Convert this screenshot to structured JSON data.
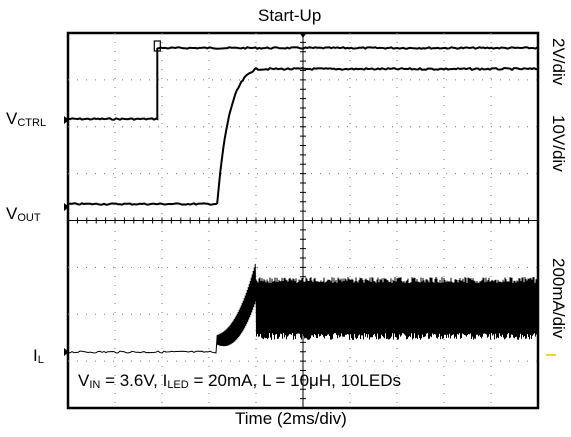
{
  "chart_data": {
    "type": "line",
    "title": "Start-Up",
    "xlabel": "Time (2ms/div)",
    "x_divisions": 10,
    "y_divisions": 8,
    "grid": true,
    "x_unit": "ms",
    "x_per_div": 2,
    "x_range": [
      0,
      20
    ],
    "trigger_time_ms": 8.0,
    "series": [
      {
        "name": "VCTRL",
        "scale": "2V/div",
        "description_points": [
          [
            0,
            0
          ],
          [
            3.8,
            0
          ],
          [
            3.8,
            3.6
          ],
          [
            20,
            3.6
          ]
        ],
        "unit": "V"
      },
      {
        "name": "VOUT",
        "scale": "10V/div",
        "description_points": [
          [
            0,
            0
          ],
          [
            6.3,
            0
          ],
          [
            6.5,
            12
          ],
          [
            7.0,
            18
          ],
          [
            7.6,
            22
          ],
          [
            8.0,
            25
          ],
          [
            20,
            25
          ]
        ],
        "unit": "V"
      },
      {
        "name": "IL",
        "scale": "200mA/div",
        "description_points": [
          [
            0,
            0
          ],
          [
            6.3,
            0
          ],
          [
            6.4,
            60
          ],
          [
            7.0,
            55
          ],
          [
            7.8,
            100
          ],
          [
            8.0,
            200
          ],
          [
            20,
            150
          ]
        ],
        "unit": "mA"
      }
    ],
    "labels": {
      "title": "Start-Up",
      "xlabel": "Time (2ms/div)",
      "ch1_label_main": "V",
      "ch1_label_sub": "CTRL",
      "ch2_label_main": "V",
      "ch2_label_sub": "OUT",
      "ch3_label_main": "I",
      "ch3_label_sub": "L",
      "scale1": "2V/div",
      "scale2": "10V/div",
      "scale3": "200mA/div"
    },
    "annotation": {
      "vin_main": "V",
      "vin_sub": "IN",
      "vin_value": " = 3.6V, ",
      "iled_main": "I",
      "iled_sub": "LED",
      "iled_value": " = 20mA, L = 10μH, 10LEDs"
    }
  }
}
